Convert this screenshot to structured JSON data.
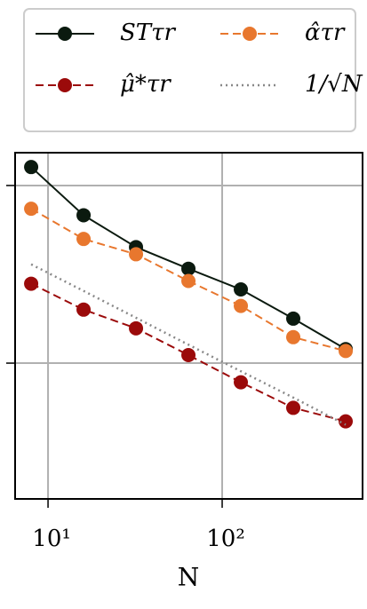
{
  "chart_data": {
    "type": "line",
    "x_label": "N",
    "x": [
      8,
      16,
      32,
      64,
      128,
      256,
      512
    ],
    "series": [
      {
        "name": "STτr",
        "color": "#0b1a0f",
        "dash": "solid",
        "values": [
          1.27,
          0.68,
          0.45,
          0.34,
          0.26,
          0.178,
          0.12
        ]
      },
      {
        "name": "μ̂*τr",
        "color": "#9b0a0a",
        "dash": "dashed",
        "values": [
          0.28,
          0.2,
          0.157,
          0.111,
          0.078,
          0.056,
          0.047
        ]
      },
      {
        "name": "α̂τr",
        "color": "#e8772e",
        "dash": "dashed",
        "values": [
          0.74,
          0.5,
          0.41,
          0.29,
          0.21,
          0.14,
          0.117
        ]
      },
      {
        "name": "1/√N",
        "color": "#888888",
        "dash": "dotted",
        "marker": false,
        "values": [
          0.36,
          0.255,
          0.18,
          0.127,
          0.09,
          0.064,
          0.045
        ]
      }
    ],
    "xscale": "log",
    "yscale": "log",
    "xlim": [
      6.47,
      640
    ],
    "ylim": [
      0.0172,
      1.53
    ],
    "xticks": [
      {
        "value": 10,
        "label": "10¹"
      },
      {
        "value": 100,
        "label": "10²"
      }
    ],
    "yticks": [
      0.1,
      1
    ],
    "grid": true,
    "legend": "top"
  }
}
